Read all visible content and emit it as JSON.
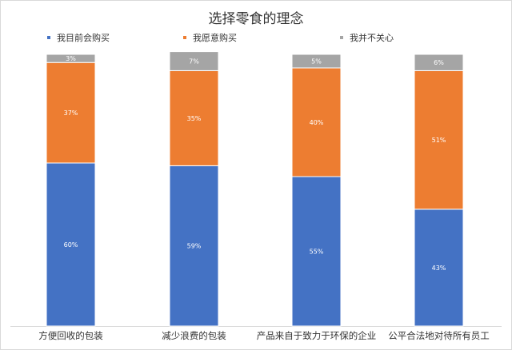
{
  "chart_data": {
    "type": "bar",
    "stacked": true,
    "title": "选择零食的理念",
    "categories": [
      "方便回收的包装",
      "减少浪费的包装",
      "产品来自于致力于环保的企业",
      "公平合法地对待所有员工"
    ],
    "series": [
      {
        "name": "我目前会购买",
        "values": [
          60,
          59,
          55,
          43
        ],
        "labels": [
          "60%",
          "59%",
          "55%",
          "43%"
        ],
        "color": "#4472C4"
      },
      {
        "name": "我愿意购买",
        "values": [
          37,
          35,
          40,
          51
        ],
        "labels": [
          "37%",
          "35%",
          "40%",
          "51%"
        ],
        "color": "#ED7D31"
      },
      {
        "name": "我并不关心",
        "values": [
          3,
          7,
          5,
          6
        ],
        "labels": [
          "3%",
          "7%",
          "5%",
          "6%"
        ],
        "color": "#A5A5A5"
      }
    ],
    "ylim": [
      0,
      100
    ],
    "legend": "top",
    "grid": false
  }
}
